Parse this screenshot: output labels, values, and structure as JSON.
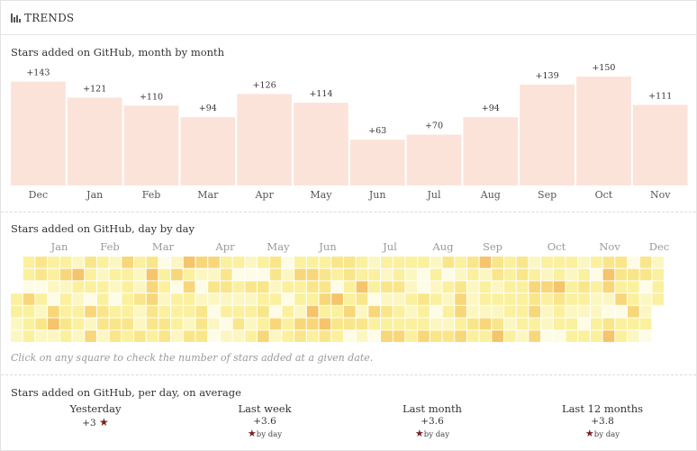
{
  "header": {
    "title": "TRENDS",
    "icon": "bar-chart-icon"
  },
  "monthly": {
    "title": "Stars added on GitHub, month by month"
  },
  "daily": {
    "title": "Stars added on GitHub, day by day",
    "month_labels": [
      "Jan",
      "Feb",
      "Mar",
      "Apr",
      "May",
      "Jun",
      "Jul",
      "Aug",
      "Sep",
      "Oct",
      "Nov",
      "Dec"
    ],
    "hint": "Click on any square to check the number of stars added at a given date."
  },
  "averages": {
    "title": "Stars added on GitHub, per day, on average",
    "items": [
      {
        "label": "Yesterday",
        "value": "+3",
        "unit": ""
      },
      {
        "label": "Last week",
        "value": "+3.6",
        "unit": "by day"
      },
      {
        "label": "Last month",
        "value": "+3.6",
        "unit": "by day"
      },
      {
        "label": "Last 12 months",
        "value": "+3.8",
        "unit": "by day"
      }
    ]
  },
  "colors": {
    "bar": "#fce3d9",
    "heat_scale": [
      "#fefce6",
      "#fcf7c2",
      "#fbf09e",
      "#fae68a",
      "#f8d77a",
      "#f5c46b"
    ]
  },
  "chart_data": [
    {
      "type": "bar",
      "title": "Stars added on GitHub, month by month",
      "categories": [
        "Dec",
        "Jan",
        "Feb",
        "Mar",
        "Apr",
        "May",
        "Jun",
        "Jul",
        "Aug",
        "Sep",
        "Oct",
        "Nov"
      ],
      "values": [
        143,
        121,
        110,
        94,
        126,
        114,
        63,
        70,
        94,
        139,
        150,
        111
      ],
      "data_labels": [
        "+143",
        "+121",
        "+110",
        "+94",
        "+126",
        "+114",
        "+63",
        "+70",
        "+94",
        "+139",
        "+150",
        "+111"
      ],
      "ylim": [
        0,
        160
      ],
      "grid": false
    },
    {
      "type": "heatmap",
      "title": "Stars added on GitHub, day by day",
      "x_labels": [
        "Jan",
        "Feb",
        "Mar",
        "Apr",
        "May",
        "Jun",
        "Jul",
        "Aug",
        "Sep",
        "Oct",
        "Nov",
        "Dec"
      ],
      "rows": 7,
      "columns": 53,
      "legend": false
    }
  ]
}
